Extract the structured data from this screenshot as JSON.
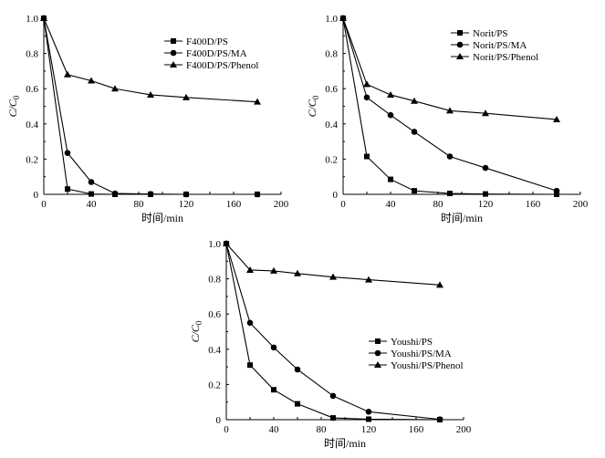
{
  "chart_data": [
    {
      "type": "line",
      "title": "",
      "xlabel": "时间/min",
      "ylabel": "C/C0",
      "xlim": [
        0,
        200
      ],
      "ylim": [
        0,
        1.0
      ],
      "x_ticks": [
        "0",
        "20",
        "40",
        "60",
        "80",
        "100",
        "120",
        "140",
        "160",
        "180",
        "200"
      ],
      "y_ticks": [
        "0",
        "0.2",
        "0.4",
        "0.6",
        "0.8",
        "1.0"
      ],
      "legend_position": "top-right",
      "grid": false,
      "series": [
        {
          "name": "F400D/PS",
          "marker": "square",
          "x": [
            0,
            20,
            40,
            60,
            90,
            120,
            180
          ],
          "y": [
            1.0,
            0.03,
            0.002,
            0.0,
            0.0,
            0.0,
            0.0
          ]
        },
        {
          "name": "F400D/PS/MA",
          "marker": "circle",
          "x": [
            0,
            20,
            40,
            60,
            90,
            120,
            180
          ],
          "y": [
            1.0,
            0.235,
            0.07,
            0.005,
            0.002,
            0.0,
            0.0
          ]
        },
        {
          "name": "F400D/PS/Phenol",
          "marker": "triangle",
          "x": [
            0,
            20,
            40,
            60,
            90,
            120,
            180
          ],
          "y": [
            1.0,
            0.68,
            0.645,
            0.6,
            0.565,
            0.55,
            0.525
          ]
        }
      ]
    },
    {
      "type": "line",
      "title": "",
      "xlabel": "时间/min",
      "ylabel": "C/C0",
      "xlim": [
        0,
        200
      ],
      "ylim": [
        0,
        1.0
      ],
      "x_ticks": [
        "0",
        "20",
        "40",
        "60",
        "80",
        "100",
        "120",
        "140",
        "160",
        "180",
        "200"
      ],
      "y_ticks": [
        "0",
        "0.2",
        "0.4",
        "0.6",
        "0.8",
        "1.0"
      ],
      "legend_position": "top-right",
      "grid": false,
      "series": [
        {
          "name": "Norit/PS",
          "marker": "square",
          "x": [
            0,
            20,
            40,
            60,
            90,
            120,
            180
          ],
          "y": [
            1.0,
            0.215,
            0.085,
            0.02,
            0.005,
            0.002,
            0.0
          ]
        },
        {
          "name": "Norit/PS/MA",
          "marker": "circle",
          "x": [
            0,
            20,
            40,
            60,
            90,
            120,
            180
          ],
          "y": [
            1.0,
            0.55,
            0.45,
            0.355,
            0.215,
            0.15,
            0.02
          ]
        },
        {
          "name": "Norit/PS/Phenol",
          "marker": "triangle",
          "x": [
            0,
            20,
            40,
            60,
            90,
            120,
            180
          ],
          "y": [
            1.0,
            0.625,
            0.565,
            0.53,
            0.475,
            0.46,
            0.425
          ]
        }
      ]
    },
    {
      "type": "line",
      "title": "",
      "xlabel": "时间/min",
      "ylabel": "C/C0",
      "xlim": [
        0,
        200
      ],
      "ylim": [
        0,
        1.0
      ],
      "x_ticks": [
        "0",
        "20",
        "40",
        "60",
        "80",
        "100",
        "120",
        "140",
        "160",
        "180",
        "200"
      ],
      "y_ticks": [
        "0",
        "0.2",
        "0.4",
        "0.6",
        "0.8",
        "1.0"
      ],
      "legend_position": "bottom-right",
      "grid": false,
      "series": [
        {
          "name": "Youshi/PS",
          "marker": "square",
          "x": [
            0,
            20,
            40,
            60,
            90,
            120,
            180
          ],
          "y": [
            1.0,
            0.31,
            0.17,
            0.09,
            0.01,
            0.003,
            0.0
          ]
        },
        {
          "name": "Youshi/PS/MA",
          "marker": "circle",
          "x": [
            0,
            20,
            40,
            60,
            90,
            120,
            180
          ],
          "y": [
            1.0,
            0.55,
            0.41,
            0.285,
            0.135,
            0.045,
            0.002
          ]
        },
        {
          "name": "Youshi/PS/Phenol",
          "marker": "triangle",
          "x": [
            0,
            20,
            40,
            60,
            90,
            120,
            180
          ],
          "y": [
            1.0,
            0.85,
            0.845,
            0.83,
            0.81,
            0.795,
            0.765
          ]
        }
      ]
    }
  ]
}
